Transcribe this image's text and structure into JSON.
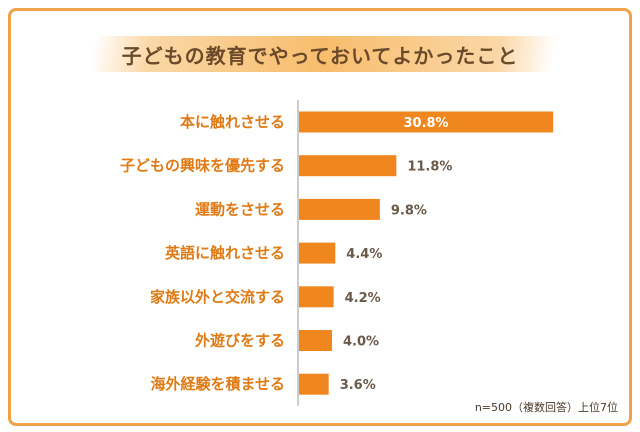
{
  "chart_data": {
    "type": "bar",
    "orientation": "horizontal",
    "title": "子どもの教育でやっておいてよかったこと",
    "categories": [
      "本に触れさせる",
      "子どもの興味を優先する",
      "運動をさせる",
      "英語に触れさせる",
      "家族以外と交流する",
      "外遊びをする",
      "海外経験を積ませる"
    ],
    "values": [
      30.8,
      11.8,
      9.8,
      4.4,
      4.2,
      4.0,
      3.6
    ],
    "value_labels": [
      "30.8%",
      "11.8%",
      "9.8%",
      "4.4%",
      "4.2%",
      "4.0%",
      "3.6%"
    ],
    "note": "n=500（複数回答）上位7位",
    "colors": {
      "bar": "#f0871e",
      "category_text": "#e07a14",
      "label_text": "#6a5a4a",
      "frame": "#f0a24a",
      "axis": "#999999"
    },
    "grid": false,
    "legend": "none"
  }
}
